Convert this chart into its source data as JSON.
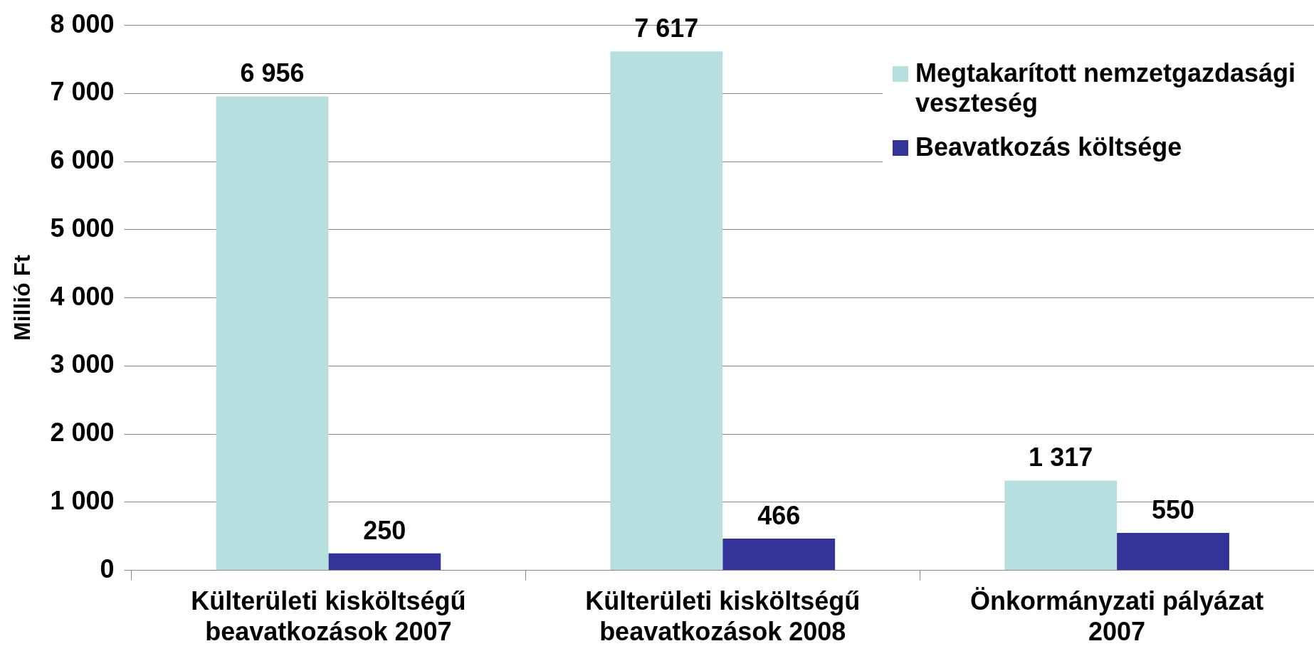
{
  "chart_data": {
    "type": "bar",
    "ylabel": "Millió Ft",
    "categories": [
      "Külterületi kisköltségű beavatkozások 2007",
      "Külterületi kisköltségű beavatkozások 2008",
      "Önkormányzati pályázat 2007"
    ],
    "series": [
      {
        "name": "Megtakarított nemzetgazdasági veszteség",
        "color": "#b7dfe0",
        "values": [
          6956,
          7617,
          1317
        ],
        "value_labels": [
          "6 956",
          "7 617",
          "1 317"
        ]
      },
      {
        "name": "Beavatkozás költsége",
        "color": "#333399",
        "values": [
          250,
          466,
          550
        ],
        "value_labels": [
          "250",
          "466",
          "550"
        ]
      }
    ],
    "ylim": [
      0,
      8000
    ],
    "yticks": [
      {
        "value": 0,
        "label": "0"
      },
      {
        "value": 1000,
        "label": "1 000"
      },
      {
        "value": 2000,
        "label": "2 000"
      },
      {
        "value": 3000,
        "label": "3 000"
      },
      {
        "value": 4000,
        "label": "4 000"
      },
      {
        "value": 5000,
        "label": "5 000"
      },
      {
        "value": 6000,
        "label": "6 000"
      },
      {
        "value": 7000,
        "label": "7 000"
      },
      {
        "value": 8000,
        "label": "8 000"
      }
    ],
    "grid": "y",
    "legend": "top right"
  }
}
